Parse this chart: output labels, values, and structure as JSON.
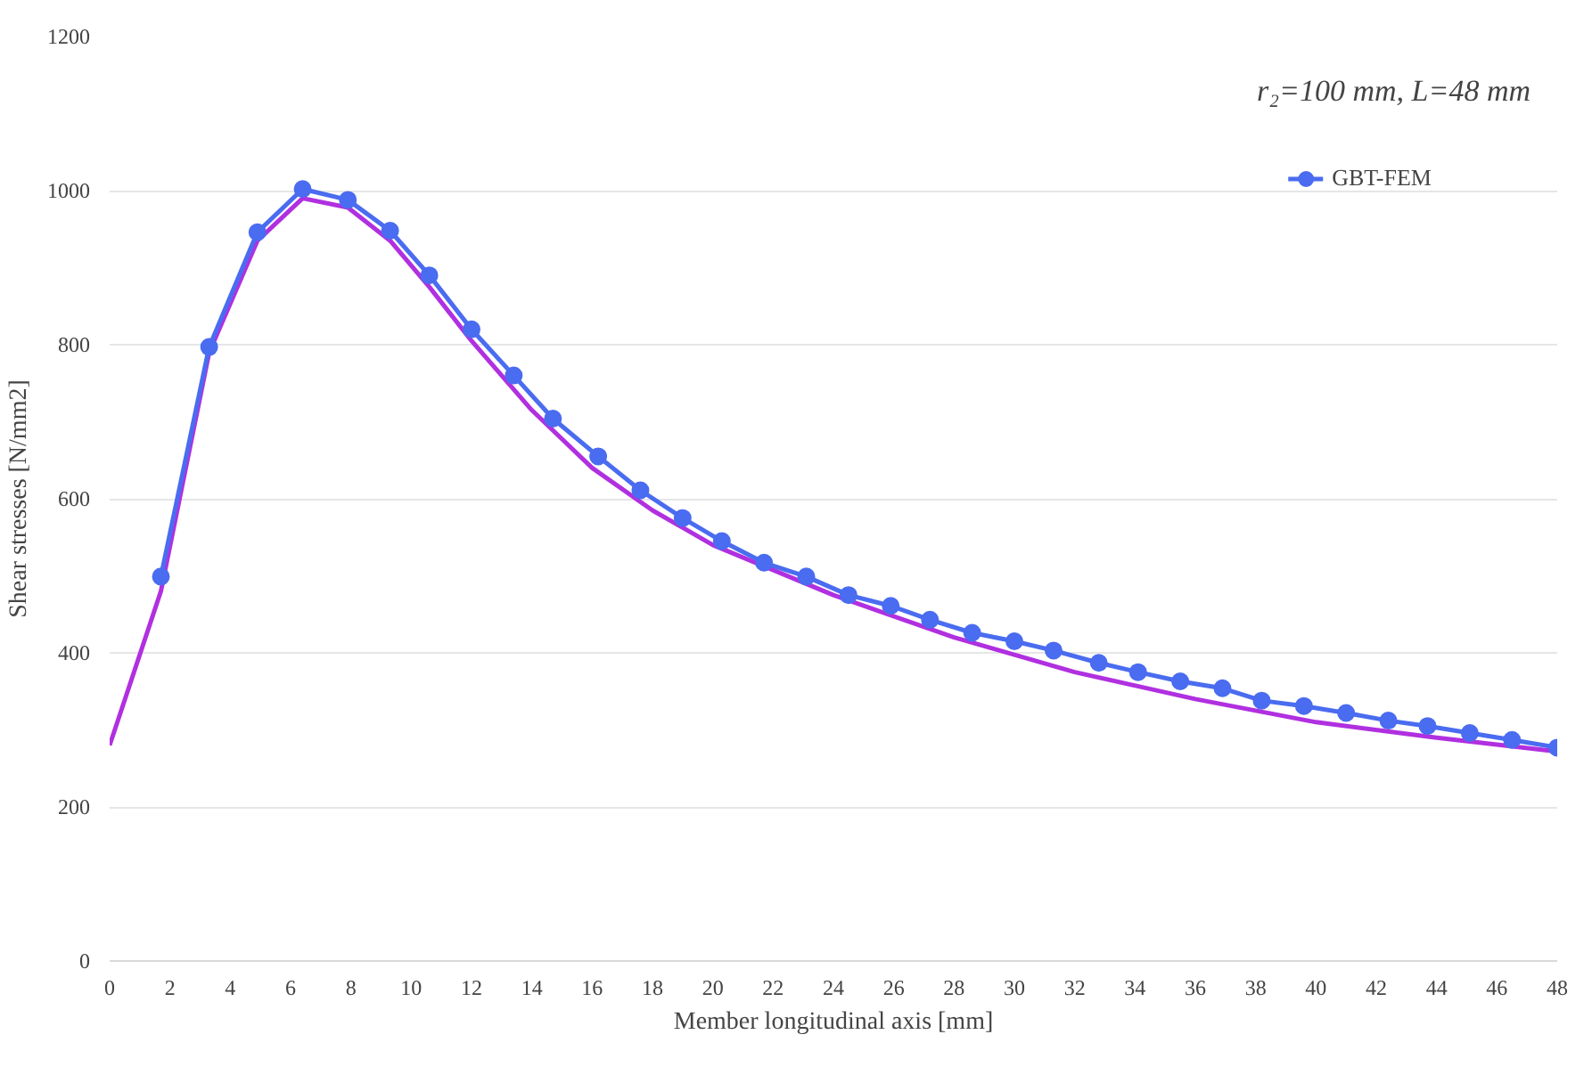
{
  "chart_data": {
    "type": "line",
    "xlabel": "Member longitudinal axis [mm]",
    "ylabel": "Shear stresses [N/mm2]",
    "annotations": [
      "r₂=100 mm, L=48 mm"
    ],
    "xlim": [
      0,
      48
    ],
    "xticks": [
      0,
      2,
      4,
      6,
      8,
      10,
      12,
      14,
      16,
      18,
      20,
      22,
      24,
      26,
      28,
      30,
      32,
      34,
      36,
      38,
      40,
      42,
      44,
      46,
      48
    ],
    "ylim": [
      0,
      1200
    ],
    "yticks": [
      0,
      200,
      400,
      600,
      800,
      1000,
      1200
    ],
    "grid": "y",
    "legend": "top right",
    "series": [
      {
        "color": "#b030e0",
        "marker": "none",
        "x": [
          0,
          1.7,
          3.3,
          4.9,
          6.4,
          7.9,
          9.3,
          10.6,
          12,
          14,
          16,
          18,
          20,
          24,
          28,
          32,
          36,
          40,
          44,
          48
        ],
        "values": [
          280,
          480,
          790,
          935,
          990,
          978,
          935,
          875,
          805,
          715,
          640,
          585,
          540,
          475,
          420,
          375,
          340,
          310,
          290,
          272
        ]
      },
      {
        "name": "GBT-FEM",
        "color": "#4a6cf0",
        "marker": "circle",
        "x": [
          1.7,
          3.3,
          4.9,
          6.4,
          7.9,
          9.3,
          10.6,
          12.0,
          13.4,
          14.7,
          16.2,
          17.6,
          19.0,
          20.3,
          21.7,
          23.1,
          24.5,
          25.9,
          27.2,
          28.6,
          30.0,
          31.3,
          32.8,
          34.1,
          35.5,
          36.9,
          38.2,
          39.6,
          41.0,
          42.4,
          43.7,
          45.1,
          46.5,
          48.0
        ],
        "values": [
          499,
          797,
          946,
          1002,
          988,
          948,
          890,
          820,
          760,
          704,
          655,
          611,
          575,
          545,
          517,
          499,
          475,
          461,
          443,
          426,
          415,
          403,
          387,
          375,
          363,
          354,
          338,
          331,
          322,
          312,
          305,
          296,
          287,
          277
        ]
      }
    ]
  }
}
